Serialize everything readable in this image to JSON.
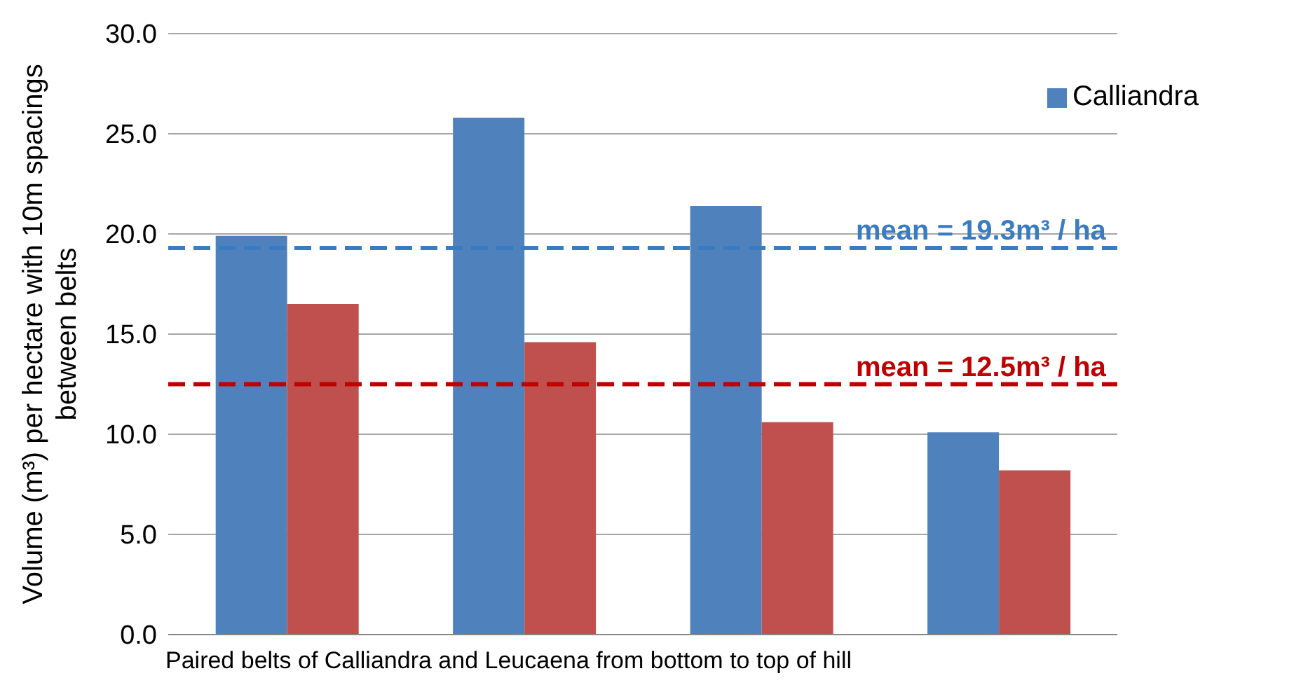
{
  "chart_data": {
    "type": "bar",
    "xlabel": "Paired belts of Calliandra and Leucaena from bottom to top of hill",
    "ylabel": "Volume (m³) per hectare with 10m spacings between belts",
    "categories": [
      null,
      null,
      null,
      null
    ],
    "series": [
      {
        "name": "Calliandra",
        "color": "#4f81bd",
        "values": [
          19.9,
          25.8,
          21.4,
          10.1
        ]
      },
      {
        "color": "#c0504d",
        "values": [
          16.5,
          14.6,
          10.6,
          8.2
        ]
      }
    ],
    "ylim": [
      0,
      30
    ],
    "yticks": [
      {
        "value": 0,
        "label": "0.0"
      },
      {
        "value": 5,
        "label": "5.0"
      },
      {
        "value": 10,
        "label": "10.0"
      },
      {
        "value": 15,
        "label": "15.0"
      },
      {
        "value": 20,
        "label": "20.0"
      },
      {
        "value": 25,
        "label": "25.0"
      },
      {
        "value": 30,
        "label": "30.0"
      }
    ],
    "grid": "y",
    "legend": "top right",
    "ref_lines": [
      {
        "axis": "y",
        "value": 19.3,
        "label": "mean = 19.3m³ / ha",
        "color": "#3a7cc2",
        "line_style": "dashed"
      },
      {
        "axis": "y",
        "value": 12.5,
        "label": "mean = 12.5m³ / ha",
        "color": "#c00000",
        "line_style": "dashed"
      }
    ]
  }
}
